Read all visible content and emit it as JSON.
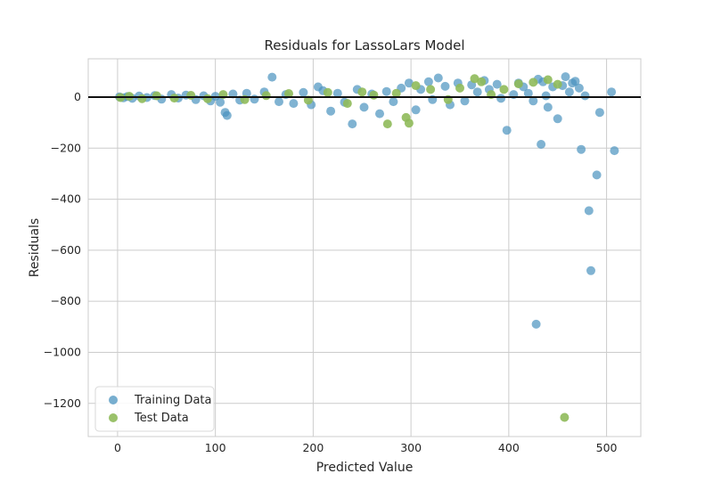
{
  "chart_data": {
    "type": "scatter",
    "title": "Residuals for LassoLars Model",
    "xlabel": "Predicted Value",
    "ylabel": "Residuals",
    "xlim": [
      -30,
      535
    ],
    "ylim": [
      -1330,
      150
    ],
    "xticks": [
      0,
      100,
      200,
      300,
      400,
      500
    ],
    "yticks": [
      0,
      -200,
      -400,
      -600,
      -800,
      -1000,
      -1200
    ],
    "grid": true,
    "zero_line": 0,
    "legend_position": "lower-left",
    "colors": {
      "training": "#4a93bf",
      "test": "#8fba5a",
      "zero_line": "#111111",
      "grid": "#cccccc"
    },
    "series": [
      {
        "name": "Training Data",
        "points": [
          [
            2,
            1
          ],
          [
            6,
            -3
          ],
          [
            10,
            2
          ],
          [
            15,
            -5
          ],
          [
            22,
            4
          ],
          [
            30,
            -2
          ],
          [
            38,
            6
          ],
          [
            45,
            -8
          ],
          [
            55,
            10
          ],
          [
            62,
            -4
          ],
          [
            70,
            8
          ],
          [
            80,
            -10
          ],
          [
            88,
            5
          ],
          [
            95,
            -15
          ],
          [
            100,
            3
          ],
          [
            105,
            -20
          ],
          [
            110,
            -60
          ],
          [
            112,
            -72
          ],
          [
            118,
            12
          ],
          [
            125,
            -12
          ],
          [
            132,
            15
          ],
          [
            140,
            -8
          ],
          [
            150,
            20
          ],
          [
            158,
            78
          ],
          [
            165,
            -18
          ],
          [
            172,
            10
          ],
          [
            180,
            -25
          ],
          [
            190,
            18
          ],
          [
            198,
            -30
          ],
          [
            205,
            40
          ],
          [
            210,
            25
          ],
          [
            218,
            -55
          ],
          [
            225,
            15
          ],
          [
            232,
            -20
          ],
          [
            240,
            -105
          ],
          [
            245,
            30
          ],
          [
            252,
            -40
          ],
          [
            260,
            12
          ],
          [
            268,
            -65
          ],
          [
            275,
            22
          ],
          [
            282,
            -18
          ],
          [
            290,
            35
          ],
          [
            298,
            55
          ],
          [
            305,
            -50
          ],
          [
            310,
            30
          ],
          [
            318,
            60
          ],
          [
            322,
            -10
          ],
          [
            328,
            75
          ],
          [
            335,
            42
          ],
          [
            340,
            -30
          ],
          [
            348,
            55
          ],
          [
            355,
            -15
          ],
          [
            362,
            48
          ],
          [
            368,
            20
          ],
          [
            375,
            65
          ],
          [
            380,
            30
          ],
          [
            388,
            50
          ],
          [
            392,
            -5
          ],
          [
            398,
            -130
          ],
          [
            405,
            10
          ],
          [
            410,
            55
          ],
          [
            415,
            40
          ],
          [
            420,
            15
          ],
          [
            425,
            -15
          ],
          [
            428,
            -890
          ],
          [
            430,
            70
          ],
          [
            433,
            -185
          ],
          [
            435,
            60
          ],
          [
            438,
            5
          ],
          [
            440,
            -40
          ],
          [
            445,
            40
          ],
          [
            450,
            -85
          ],
          [
            455,
            45
          ],
          [
            458,
            80
          ],
          [
            462,
            20
          ],
          [
            465,
            55
          ],
          [
            468,
            62
          ],
          [
            472,
            35
          ],
          [
            474,
            -205
          ],
          [
            478,
            5
          ],
          [
            482,
            -445
          ],
          [
            484,
            -680
          ],
          [
            490,
            -305
          ],
          [
            493,
            -60
          ],
          [
            505,
            20
          ],
          [
            508,
            -210
          ]
        ]
      },
      {
        "name": "Test Data",
        "points": [
          [
            3,
            -2
          ],
          [
            12,
            3
          ],
          [
            25,
            -6
          ],
          [
            40,
            5
          ],
          [
            58,
            -4
          ],
          [
            75,
            7
          ],
          [
            92,
            -6
          ],
          [
            108,
            10
          ],
          [
            130,
            -10
          ],
          [
            152,
            6
          ],
          [
            175,
            14
          ],
          [
            195,
            -12
          ],
          [
            215,
            18
          ],
          [
            235,
            -25
          ],
          [
            250,
            20
          ],
          [
            262,
            8
          ],
          [
            276,
            -105
          ],
          [
            285,
            15
          ],
          [
            295,
            -80
          ],
          [
            298,
            -102
          ],
          [
            305,
            45
          ],
          [
            320,
            30
          ],
          [
            338,
            -10
          ],
          [
            350,
            35
          ],
          [
            365,
            72
          ],
          [
            372,
            60
          ],
          [
            382,
            10
          ],
          [
            395,
            30
          ],
          [
            410,
            52
          ],
          [
            425,
            58
          ],
          [
            440,
            68
          ],
          [
            450,
            50
          ],
          [
            457,
            -1255
          ]
        ]
      }
    ]
  }
}
